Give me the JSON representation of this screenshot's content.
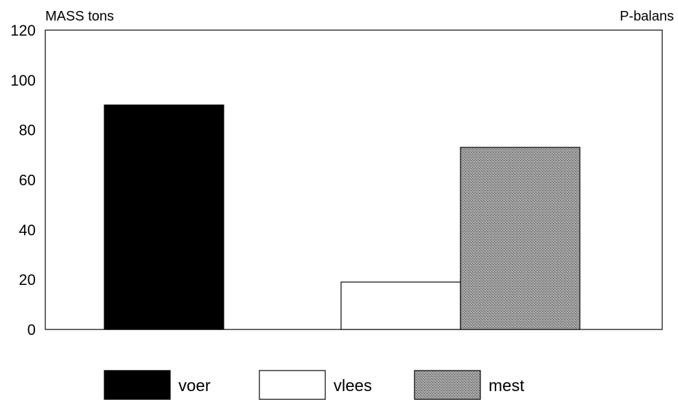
{
  "chart_data": {
    "type": "bar",
    "title": "",
    "ylabel": "MASS tons",
    "right_label": "P-balans",
    "xlabel": "",
    "ylim": [
      0,
      120
    ],
    "yticks": [
      0,
      20,
      40,
      60,
      80,
      100,
      120
    ],
    "grid": false,
    "legend_position": "bottom",
    "series": [
      {
        "name": "voer",
        "value": 90,
        "fill": "#000000",
        "pattern": "solid"
      },
      {
        "name": "vlees",
        "value": 19,
        "fill": "#ffffff",
        "pattern": "solid"
      },
      {
        "name": "mest",
        "value": 73,
        "fill": "#8c8c8c",
        "pattern": "stipple"
      }
    ]
  }
}
